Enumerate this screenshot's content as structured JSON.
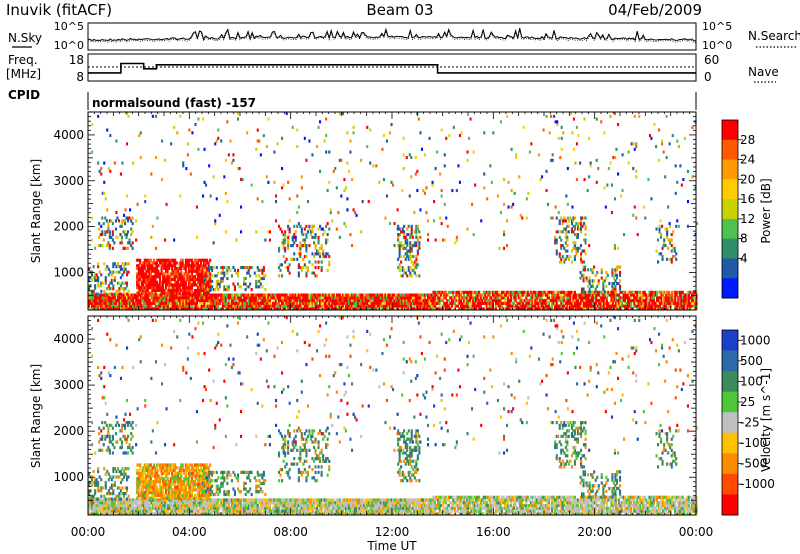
{
  "header": {
    "station": "Inuvik (fitACF)",
    "beam": "Beam 03",
    "date": "04/Feb/2009"
  },
  "top_panels": {
    "nsky_label": "N.Sky",
    "nsearch_label": "N.Search",
    "noise_ticks": [
      "10^5",
      "10^0"
    ],
    "freq_label": "Freq.",
    "freq_unit": "[MHz]",
    "freq_ticks": [
      "18",
      "8"
    ],
    "nave_label": "Nave",
    "nave_ticks": [
      "60",
      "0"
    ],
    "cpid_label": "CPID",
    "cpid_value": "normalsound (fast) -157"
  },
  "chart_data": [
    {
      "type": "heatmap",
      "name": "power",
      "ylabel": "Slant Range [km]",
      "ylim": [
        180,
        4500
      ],
      "y_ticks": [
        1000,
        2000,
        3000,
        4000
      ],
      "x_range_hours": [
        0,
        24
      ],
      "colorbar": {
        "label": "Power [dB]",
        "ticks": [
          "28",
          "24",
          "20",
          "16",
          "12",
          "8",
          "4"
        ],
        "colors": [
          "#ff0000",
          "#ff5a00",
          "#ff9a00",
          "#ffcc00",
          "#c8d200",
          "#4ec24e",
          "#2f8f6a",
          "#1e5aa8",
          "#0018ff"
        ]
      }
    },
    {
      "type": "heatmap",
      "name": "velocity",
      "ylabel": "Slant Range [km]",
      "xlabel": "Time UT",
      "ylim": [
        180,
        4500
      ],
      "y_ticks": [
        1000,
        2000,
        3000,
        4000
      ],
      "x_ticks": [
        "00:00",
        "04:00",
        "08:00",
        "12:00",
        "16:00",
        "20:00",
        "00:00"
      ],
      "x_range_hours": [
        0,
        24
      ],
      "colorbar": {
        "label": "Velocity [m s^-1]",
        "ticks": [
          "1000",
          "500",
          "100",
          "25",
          "-25",
          "-100",
          "-500",
          "-1000"
        ],
        "colors": [
          "#1c3fc8",
          "#2b6aa8",
          "#3a8a5a",
          "#4ec63a",
          "#c0c0c0",
          "#ffc000",
          "#ff8a00",
          "#ff4a00",
          "#ff0000"
        ]
      }
    }
  ],
  "frequency_series": {
    "hours": [
      0,
      1.3,
      1.3,
      2.2,
      2.2,
      2.7,
      2.7,
      13.8,
      13.8,
      24
    ],
    "mhz": [
      11,
      11,
      14.5,
      14.5,
      12.5,
      12.5,
      14,
      14,
      11,
      11
    ]
  }
}
